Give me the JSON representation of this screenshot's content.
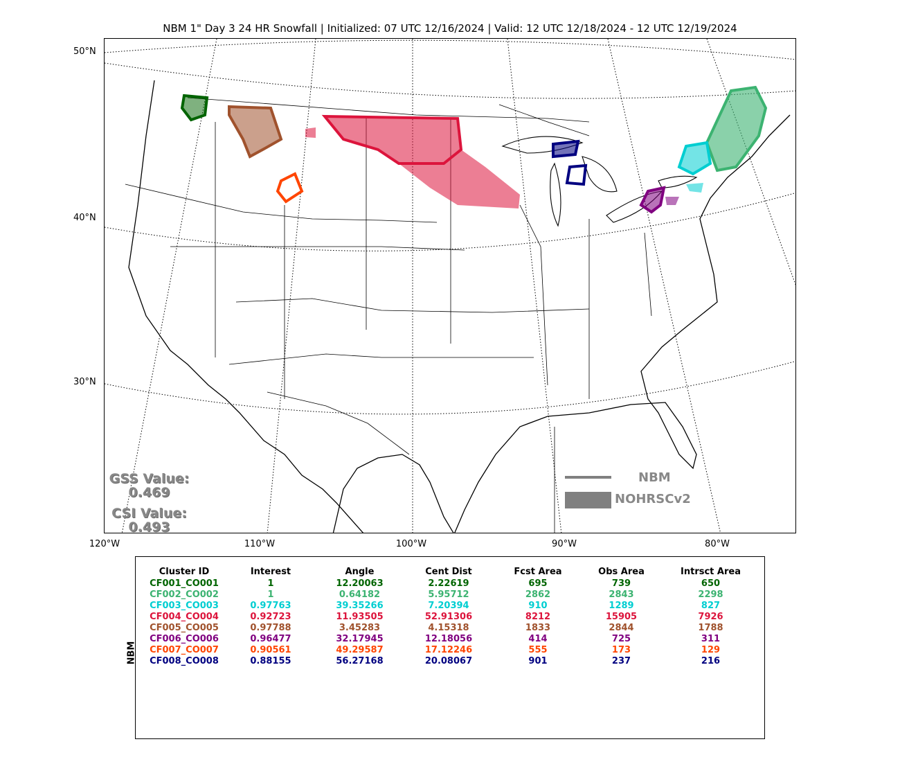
{
  "title": "NBM 1\" Day 3 24 HR Snowfall | Initialized: 07 UTC 12/16/2024 | Valid: 12 UTC 12/18/2024 - 12 UTC 12/19/2024",
  "map": {
    "lat_labels": [
      "50°N",
      "40°N",
      "30°N"
    ],
    "lon_labels": [
      "120°W",
      "110°W",
      "100°W",
      "90°W",
      "80°W"
    ],
    "gss_label": "GSS Value:",
    "gss_value": "0.469",
    "csi_label": "CSI Value:",
    "csi_value": "0.493",
    "legend": {
      "line_label": "NBM",
      "fill_label": "NOHRSCv2",
      "color": "#808080"
    },
    "clusters": [
      {
        "id": "CF001_CO001",
        "color": "#006400",
        "region": "western-washington"
      },
      {
        "id": "CF002_CO002",
        "color": "#3cb371",
        "region": "northern-new-england"
      },
      {
        "id": "CF003_CO003",
        "color": "#00ced1",
        "region": "northern-new-york"
      },
      {
        "id": "CF004_CO004",
        "color": "#dc143c",
        "region": "northern-plains"
      },
      {
        "id": "CF005_CO005",
        "color": "#a0522d",
        "region": "northern-rockies"
      },
      {
        "id": "CF006_CO006",
        "color": "#800080",
        "region": "lake-erie"
      },
      {
        "id": "CF007_CO007",
        "color": "#ff4500",
        "region": "wyoming"
      },
      {
        "id": "CF008_CO008",
        "color": "#000080",
        "region": "upper-michigan"
      }
    ]
  },
  "table": {
    "model_label": "NBM",
    "headers": [
      "Cluster ID",
      "Interest",
      "Angle",
      "Cent Dist",
      "Fcst Area",
      "Obs Area",
      "Intrsct Area"
    ],
    "rows": [
      {
        "color": "#006400",
        "cells": [
          "CF001_CO001",
          "1",
          "12.20063",
          "2.22619",
          "695",
          "739",
          "650"
        ]
      },
      {
        "color": "#3cb371",
        "cells": [
          "CF002_CO002",
          "1",
          "0.64182",
          "5.95712",
          "2862",
          "2843",
          "2298"
        ]
      },
      {
        "color": "#00ced1",
        "cells": [
          "CF003_CO003",
          "0.97763",
          "39.35266",
          "7.20394",
          "910",
          "1289",
          "827"
        ]
      },
      {
        "color": "#dc143c",
        "cells": [
          "CF004_CO004",
          "0.92723",
          "11.93505",
          "52.91306",
          "8212",
          "15905",
          "7926"
        ]
      },
      {
        "color": "#a0522d",
        "cells": [
          "CF005_CO005",
          "0.97788",
          "3.45283",
          "4.15318",
          "1833",
          "2844",
          "1788"
        ]
      },
      {
        "color": "#800080",
        "cells": [
          "CF006_CO006",
          "0.96477",
          "32.17945",
          "12.18056",
          "414",
          "725",
          "311"
        ]
      },
      {
        "color": "#ff4500",
        "cells": [
          "CF007_CO007",
          "0.90561",
          "49.29587",
          "17.12246",
          "555",
          "173",
          "129"
        ]
      },
      {
        "color": "#000080",
        "cells": [
          "CF008_CO008",
          "0.88155",
          "56.27168",
          "20.08067",
          "901",
          "237",
          "216"
        ]
      }
    ]
  }
}
